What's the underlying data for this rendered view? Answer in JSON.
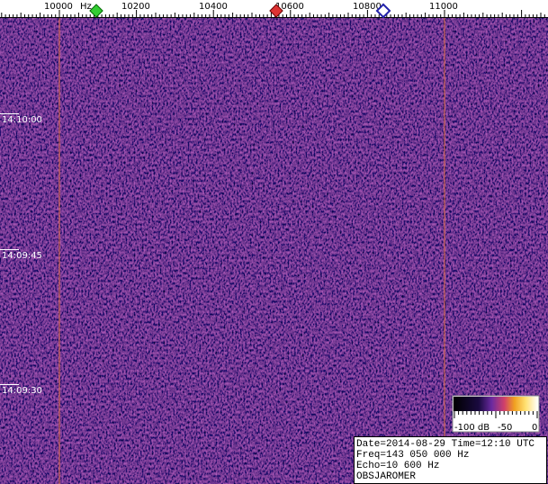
{
  "frequency_axis": {
    "labels": [
      "10000",
      "Hz",
      "10200",
      "10400",
      "10600",
      "10800",
      "11000"
    ]
  },
  "time_axis": {
    "labels": [
      "14:10:00",
      "14:09:45",
      "14:09:30"
    ]
  },
  "color_scale": {
    "labels": [
      "-100 dB",
      "-50",
      "0"
    ]
  },
  "info": {
    "lines": [
      "Date=2014-08-29 Time=12:10 UTC",
      "Freq=143 050 000 Hz",
      "Echo=10 600 Hz",
      "OBSJAROMER"
    ]
  }
}
